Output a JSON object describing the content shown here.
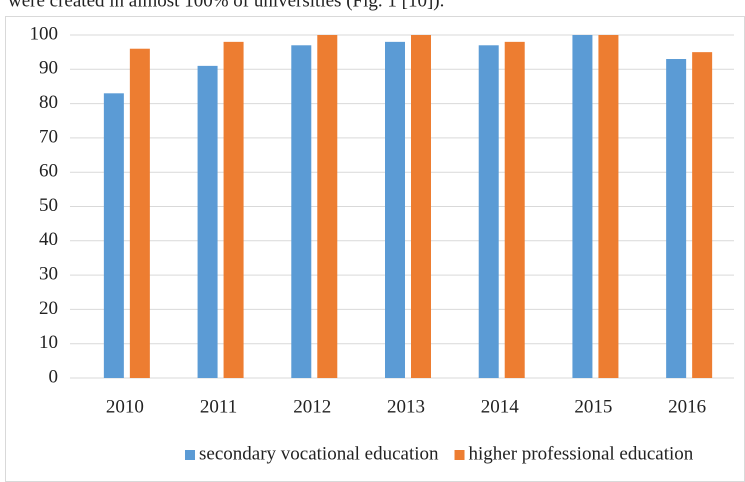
{
  "preceding_text": "were created in almost 100% of universities (Fig. 1 [10]).",
  "chart_data": {
    "type": "bar",
    "categories": [
      "2010",
      "2011",
      "2012",
      "2013",
      "2014",
      "2015",
      "2016"
    ],
    "series": [
      {
        "name": "secondary vocational education",
        "color": "#5b9bd5",
        "values": [
          83,
          91,
          97,
          98,
          97,
          100,
          93
        ]
      },
      {
        "name": "higher professional education",
        "color": "#ed7d31",
        "values": [
          96,
          98,
          100,
          100,
          98,
          100,
          95
        ]
      }
    ],
    "ylim": [
      0,
      100
    ],
    "yticks": [
      0,
      10,
      20,
      30,
      40,
      50,
      60,
      70,
      80,
      90,
      100
    ],
    "grid": true,
    "legend": "bottom"
  }
}
